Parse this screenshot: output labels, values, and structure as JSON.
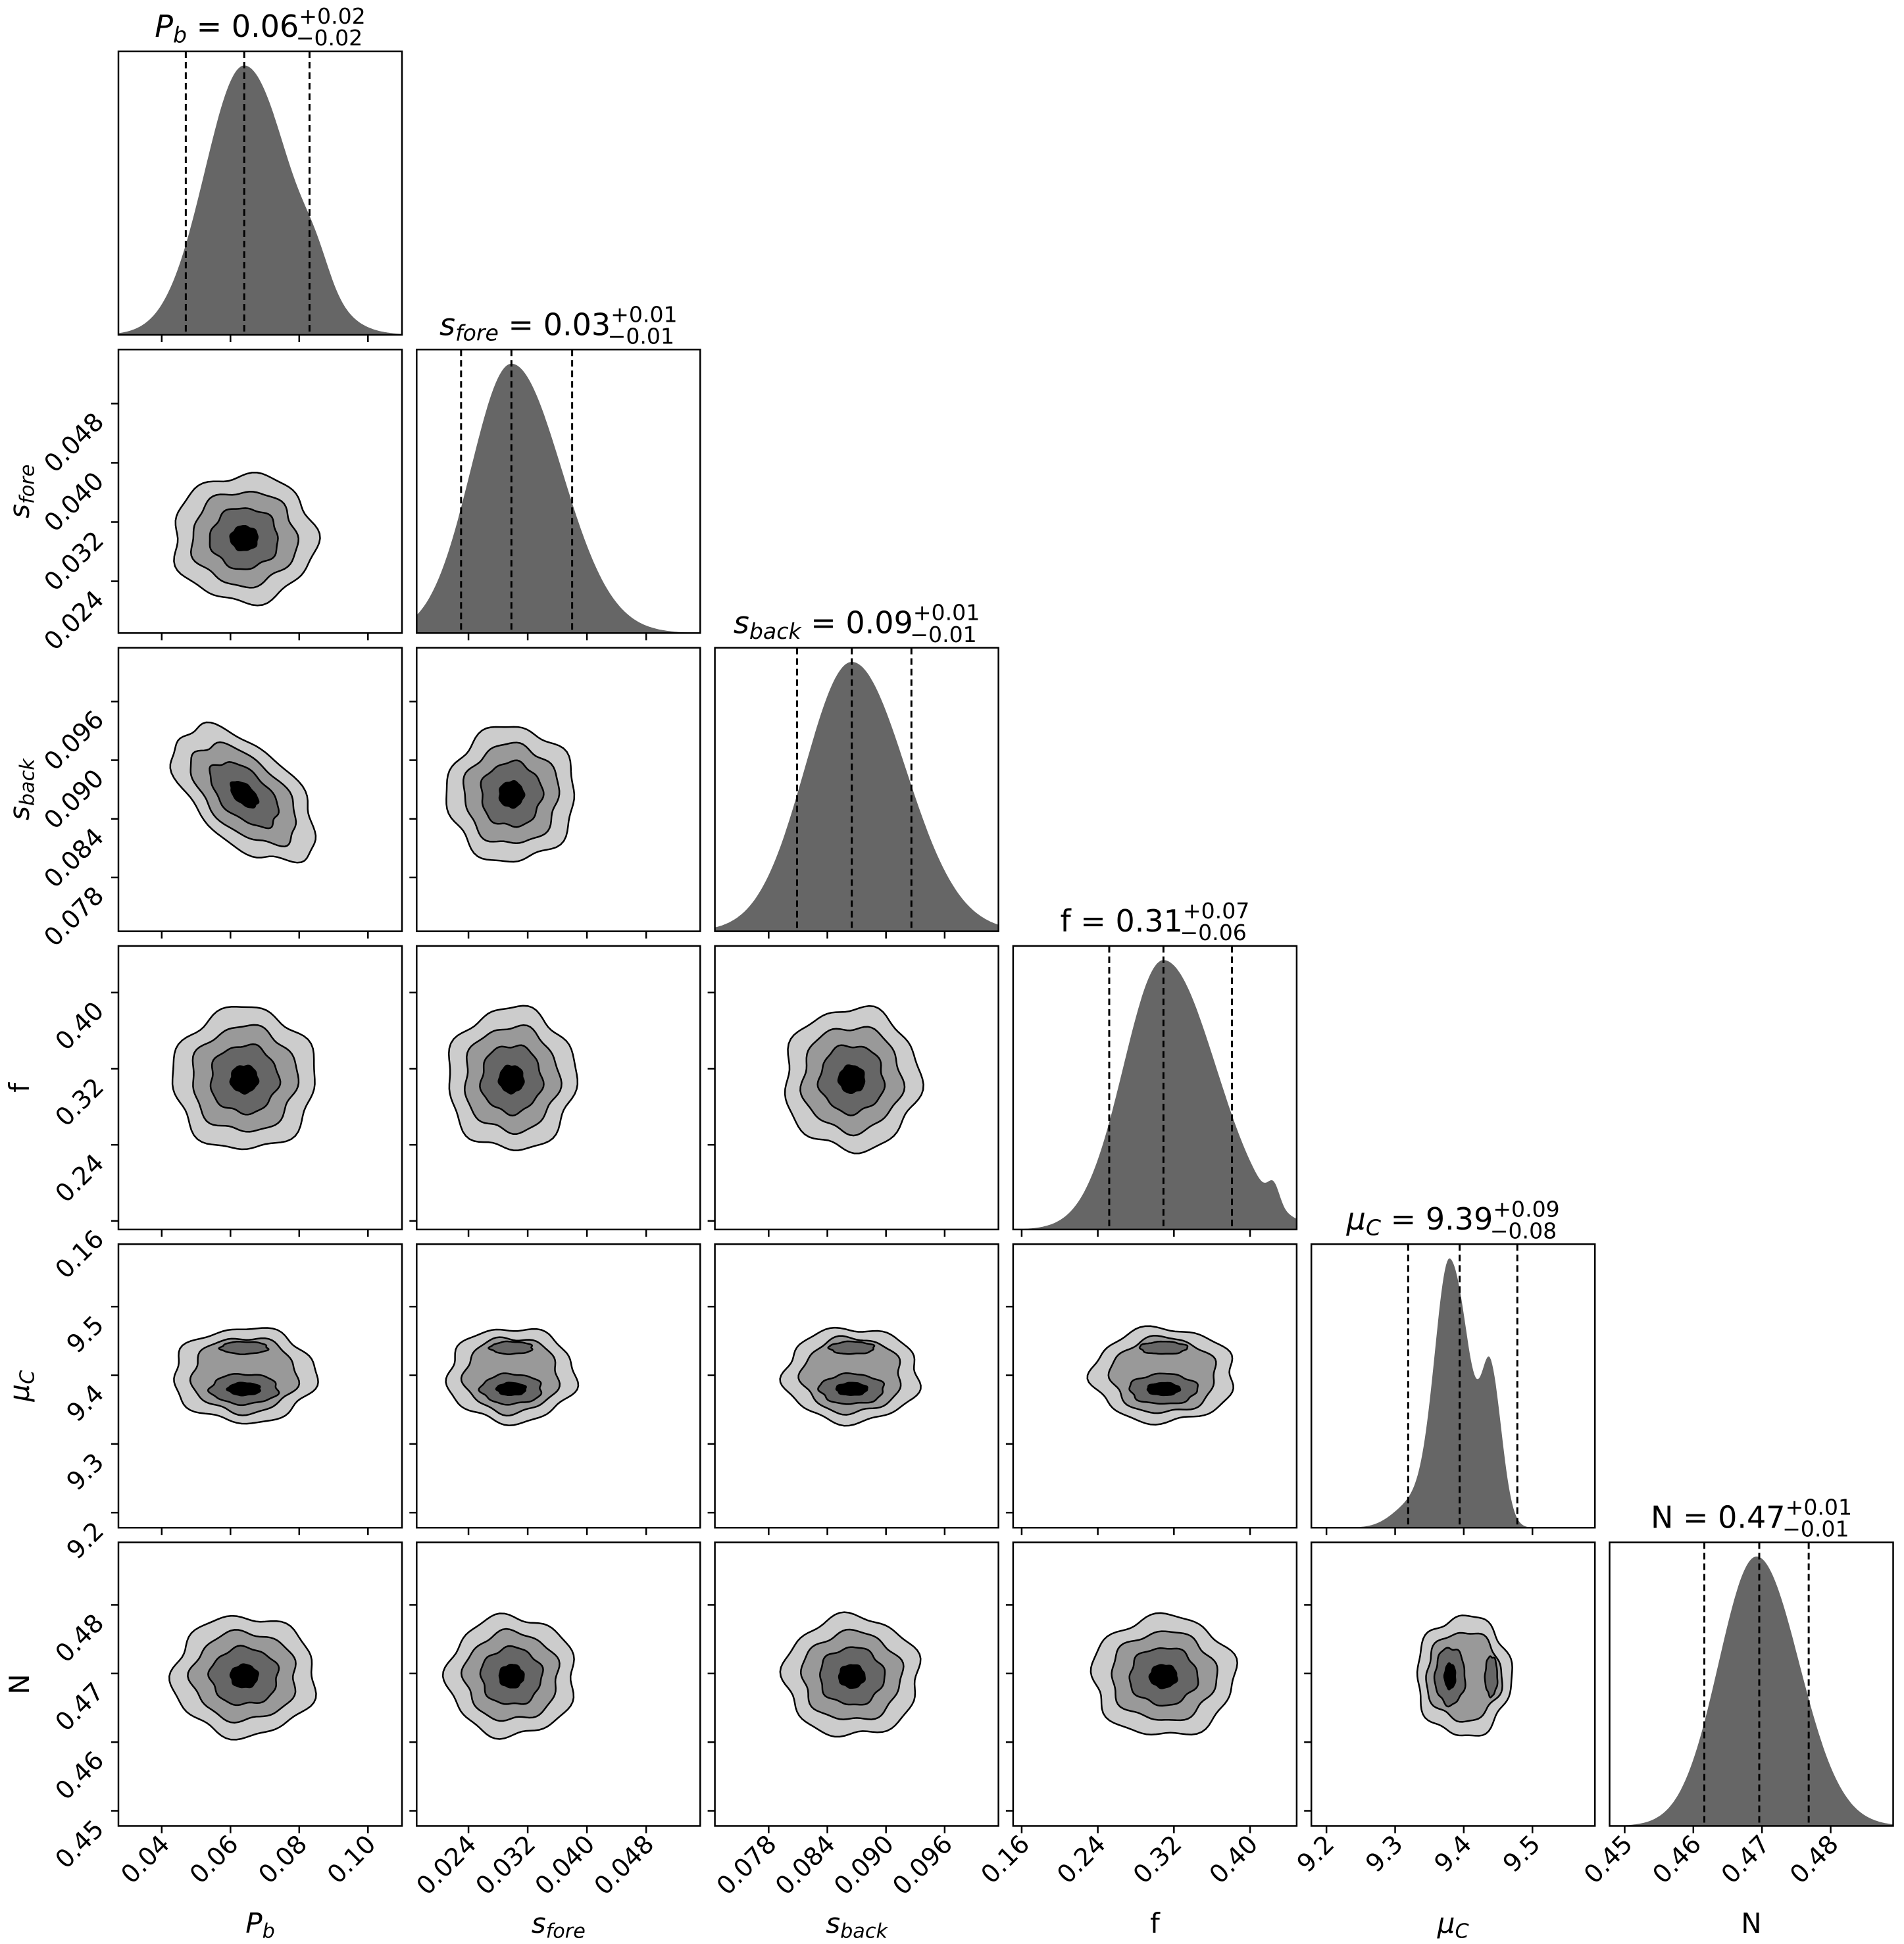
{
  "chart_data": {
    "type": "corner",
    "params": [
      {
        "key": "P_b",
        "sym": "P",
        "sub": "b",
        "italic": true,
        "range": [
          0.0274,
          0.1099
        ],
        "ticks": [
          0.04,
          0.06,
          0.08,
          0.1
        ],
        "tick_labels": [
          "0.04",
          "0.06",
          "0.08",
          "0.10"
        ],
        "title": {
          "value": "0.06",
          "plus": "+0.02",
          "minus": "−0.02"
        },
        "quantiles": [
          0.047,
          0.064,
          0.083
        ],
        "sigma": 0.018,
        "components": [
          {
            "w": 1,
            "mean": 0.064,
            "sd": 0.0115,
            "sdr": 0.0135
          },
          {
            "w": 0.08,
            "mean": 0.085,
            "sd": 0.004,
            "sdr": 0.004
          }
        ]
      },
      {
        "key": "s_fore",
        "sym": "s",
        "sub": "fore",
        "italic": true,
        "range": [
          0.017,
          0.0553
        ],
        "ticks": [
          0.024,
          0.032,
          0.04,
          0.048
        ],
        "tick_labels": [
          "0.024",
          "0.032",
          "0.040",
          "0.048"
        ],
        "title": {
          "value": "0.03",
          "plus": "+0.01",
          "minus": "−0.01"
        },
        "quantiles": [
          0.023,
          0.0298,
          0.038
        ],
        "sigma": 0.0075,
        "components": [
          {
            "w": 1,
            "mean": 0.0298,
            "sd": 0.0055,
            "sdr": 0.0068
          }
        ]
      },
      {
        "key": "s_back",
        "sym": "s",
        "sub": "back",
        "italic": true,
        "range": [
          0.0725,
          0.1015
        ],
        "ticks": [
          0.078,
          0.084,
          0.09,
          0.096
        ],
        "tick_labels": [
          "0.078",
          "0.084",
          "0.090",
          "0.096"
        ],
        "title": {
          "value": "0.09",
          "plus": "+0.01",
          "minus": "−0.01"
        },
        "quantiles": [
          0.0809,
          0.0865,
          0.0926
        ],
        "sigma": 0.006,
        "components": [
          {
            "w": 1,
            "mean": 0.0865,
            "sd": 0.0048,
            "sdr": 0.0055
          }
        ]
      },
      {
        "key": "f",
        "sym": "f",
        "sub": "",
        "italic": false,
        "range": [
          0.151,
          0.449
        ],
        "ticks": [
          0.16,
          0.24,
          0.32,
          0.4
        ],
        "tick_labels": [
          "0.16",
          "0.24",
          "0.32",
          "0.40"
        ],
        "title": {
          "value": "0.31",
          "plus": "+0.07",
          "minus": "−0.06"
        },
        "quantiles": [
          0.252,
          0.309,
          0.381
        ],
        "sigma": 0.065,
        "components": [
          {
            "w": 1,
            "mean": 0.309,
            "sd": 0.042,
            "sdr": 0.055
          },
          {
            "w": 0.07,
            "mean": 0.425,
            "sd": 0.006,
            "sdr": 0.006
          }
        ]
      },
      {
        "key": "mu_C",
        "sym": "μ",
        "sub": "C",
        "italic": true,
        "range": [
          9.178,
          9.591
        ],
        "ticks": [
          9.2,
          9.3,
          9.4,
          9.5
        ],
        "tick_labels": [
          "9.2",
          "9.3",
          "9.4",
          "9.5"
        ],
        "title": {
          "value": "9.39",
          "plus": "+0.09",
          "minus": "−0.08"
        },
        "quantiles": [
          9.319,
          9.394,
          9.478
        ],
        "sigma": 0.07,
        "components": [
          {
            "w": 1,
            "mean": 9.38,
            "sd": 0.022,
            "sdr": 0.03
          },
          {
            "w": 0.5,
            "mean": 9.44,
            "sd": 0.013,
            "sdr": 0.016
          },
          {
            "w": 0.1,
            "mean": 9.33,
            "sd": 0.03,
            "sdr": 0.03
          }
        ]
      },
      {
        "key": "N",
        "sym": "N",
        "sub": "",
        "italic": false,
        "range": [
          0.4478,
          0.4891
        ],
        "ticks": [
          0.45,
          0.46,
          0.47,
          0.48
        ],
        "tick_labels": [
          "0.45",
          "0.46",
          "0.47",
          "0.48"
        ],
        "title": {
          "value": "0.47",
          "plus": "+0.01",
          "minus": "−0.01"
        },
        "quantiles": [
          0.4616,
          0.4696,
          0.4768
        ],
        "sigma": 0.0076,
        "components": [
          {
            "w": 1,
            "mean": 0.4692,
            "sd": 0.0055,
            "sdr": 0.0062
          }
        ]
      }
    ],
    "correlations": {
      "0-2": -0.55
    },
    "contour_levels_sigma": [
      1.15,
      0.85,
      0.55,
      0.22
    ],
    "colors": {
      "hist": "#666666",
      "contours": [
        "#cccccc",
        "#999999",
        "#666666",
        "#000000"
      ],
      "line": "#000000"
    }
  }
}
